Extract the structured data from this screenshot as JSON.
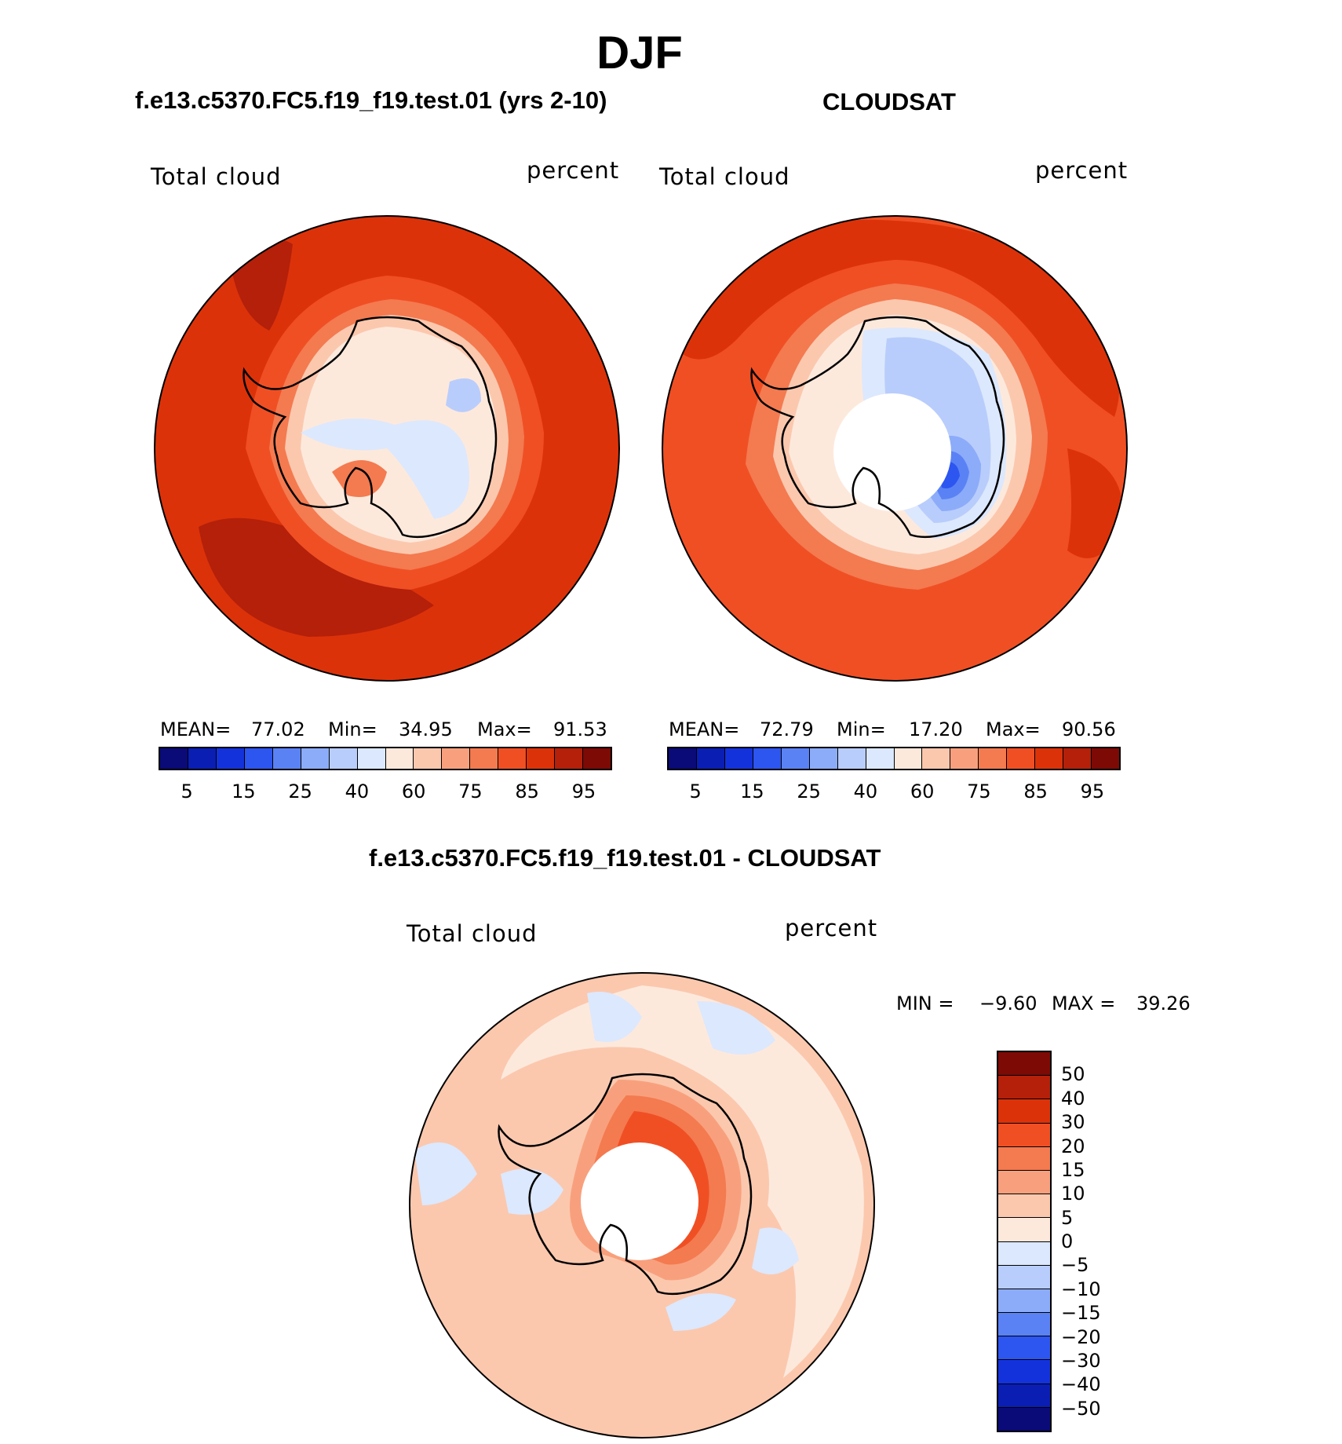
{
  "page": {
    "title": "DJF"
  },
  "panels": [
    {
      "case": "f.e13.c5370.FC5.f19_f19.test.01 (yrs 2-10)",
      "variable": "Total cloud",
      "units": "percent",
      "stats": {
        "mean_label": "MEAN=",
        "mean": "77.02",
        "min_label": "Min=",
        "min": "34.95",
        "max_label": "Max=",
        "max": "91.53"
      }
    },
    {
      "case": "CLOUDSAT",
      "variable": "Total cloud",
      "units": "percent",
      "stats": {
        "mean_label": "MEAN=",
        "mean": "72.79",
        "min_label": "Min=",
        "min": "17.20",
        "max_label": "Max=",
        "max": "90.56"
      }
    },
    {
      "case": "f.e13.c5370.FC5.f19_f19.test.01 - CLOUDSAT",
      "variable": "Total cloud",
      "units": "percent",
      "stats_text": {
        "min_label": "MIN =",
        "min": "−9.60",
        "max_label": "MAX =",
        "max": "39.26"
      }
    }
  ],
  "colorbar_abs": {
    "colors": [
      "#0a0a78",
      "#0a1eb4",
      "#1432dc",
      "#2d55f0",
      "#5a82f5",
      "#8cacfa",
      "#b9cdfc",
      "#dce8fd",
      "#fde9dc",
      "#fbc8ae",
      "#f8a07d",
      "#f47a50",
      "#f04f24",
      "#dc320a",
      "#b4200a",
      "#7d0a05"
    ],
    "tick_labels": [
      "5",
      "15",
      "25",
      "40",
      "60",
      "75",
      "85",
      "95"
    ]
  },
  "colorbar_diff": {
    "colors": [
      "#7d0a05",
      "#b4200a",
      "#dc320a",
      "#f04f24",
      "#f47a50",
      "#f8a07d",
      "#fbc8ae",
      "#fde9dc",
      "#dce8fd",
      "#b9cdfc",
      "#8cacfa",
      "#5a82f5",
      "#2d55f0",
      "#1432dc",
      "#0a1eb4",
      "#0a0a78"
    ],
    "tick_labels": [
      "50",
      "40",
      "30",
      "20",
      "15",
      "10",
      "5",
      "0",
      "−5",
      "−10",
      "−15",
      "−20",
      "−30",
      "−40",
      "−50"
    ]
  },
  "map_colors": {
    "c95": "#b4200a",
    "c85": "#dc320a",
    "c75": "#f04f24",
    "c60": "#f47a50",
    "c55": "#f8a07d",
    "c50": "#fbc8ae",
    "c45": "#fde9dc",
    "c40": "#dce8fd",
    "c35": "#b9cdfc",
    "c30": "#8cacfa",
    "c25": "#5a82f5",
    "c15": "#2d55f0",
    "d5": "#fde9dc",
    "d10": "#fbc8ae",
    "d15": "#f8a07d",
    "d20": "#f47a50",
    "d30": "#f04f24",
    "dm5": "#dce8fd",
    "dm10": "#b9cdfc"
  }
}
